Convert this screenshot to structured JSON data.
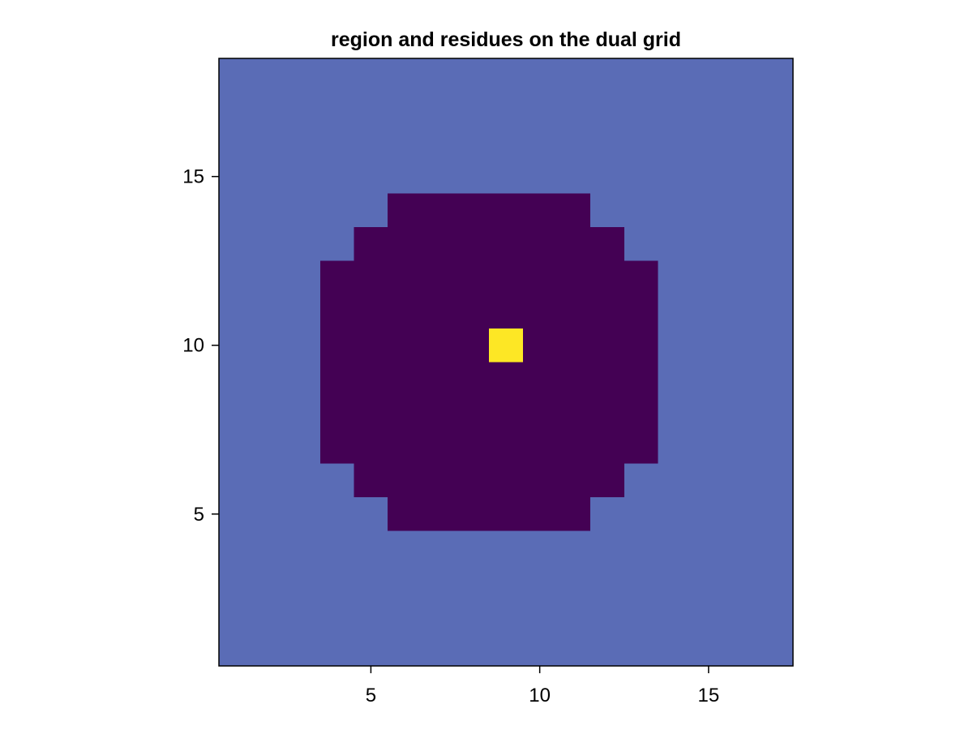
{
  "chart_data": {
    "type": "heatmap",
    "title": "region and residues on the dual grid",
    "xlabel": "",
    "ylabel": "",
    "xlim": [
      0.5,
      17.5
    ],
    "ylim": [
      0.5,
      18.5
    ],
    "xticks": [
      5,
      10,
      15
    ],
    "yticks": [
      5,
      10,
      15
    ],
    "grid": false,
    "legend": "none",
    "colors": {
      "outside": "#5a6cb6",
      "region": "#440154",
      "residue": "#fde725"
    },
    "background_value": "outside",
    "region_rows": [
      {
        "y": 5,
        "x_from": 6,
        "x_to": 11
      },
      {
        "y": 6,
        "x_from": 5,
        "x_to": 12
      },
      {
        "y": 7,
        "x_from": 4,
        "x_to": 13
      },
      {
        "y": 8,
        "x_from": 4,
        "x_to": 13
      },
      {
        "y": 9,
        "x_from": 4,
        "x_to": 13
      },
      {
        "y": 10,
        "x_from": 4,
        "x_to": 13
      },
      {
        "y": 11,
        "x_from": 4,
        "x_to": 13
      },
      {
        "y": 12,
        "x_from": 4,
        "x_to": 13
      },
      {
        "y": 13,
        "x_from": 5,
        "x_to": 12
      },
      {
        "y": 14,
        "x_from": 6,
        "x_to": 11
      }
    ],
    "residues": [
      {
        "x": 9,
        "y": 10
      }
    ]
  }
}
